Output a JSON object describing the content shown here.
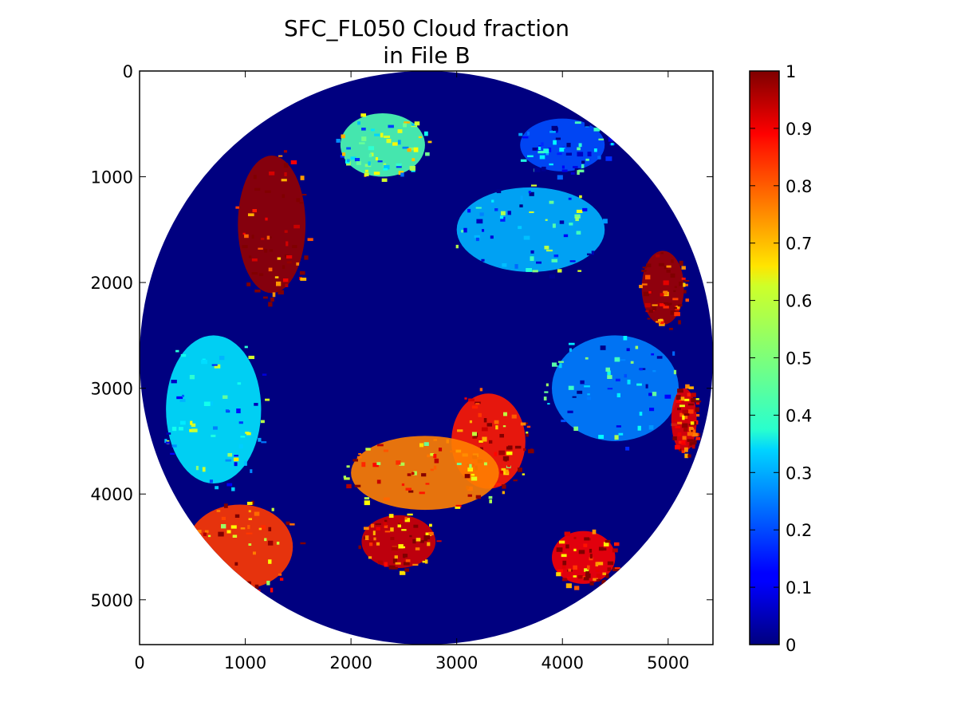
{
  "chart_data": {
    "type": "heatmap",
    "title_line1": "SFC_FL050 Cloud fraction",
    "title_line2": "in File B",
    "xlabel": "",
    "ylabel": "",
    "xlim": [
      0,
      5424
    ],
    "ylim": [
      5424,
      0
    ],
    "x_ticks": [
      0,
      1000,
      2000,
      3000,
      4000,
      5000
    ],
    "y_ticks": [
      0,
      1000,
      2000,
      3000,
      4000,
      5000
    ],
    "x_tick_labels": [
      "0",
      "1000",
      "2000",
      "3000",
      "4000",
      "5000"
    ],
    "y_tick_labels": [
      "0",
      "1000",
      "2000",
      "3000",
      "4000",
      "5000"
    ],
    "colorbar": {
      "min": 0,
      "max": 1,
      "ticks": [
        0,
        0.1,
        0.2,
        0.3,
        0.4,
        0.5,
        0.6,
        0.7,
        0.8,
        0.9,
        1
      ],
      "tick_labels": [
        "0",
        "0.1",
        "0.2",
        "0.3",
        "0.4",
        "0.5",
        "0.6",
        "0.7",
        "0.8",
        "0.9",
        "1"
      ],
      "colormap": "jet"
    },
    "disk": {
      "center": [
        2712,
        2712
      ],
      "radius": 2712,
      "background_value": 0
    },
    "cloud_regions": [
      {
        "cx": 1250,
        "cy": 1450,
        "rx": 320,
        "ry": 650,
        "value": 0.98
      },
      {
        "cx": 4950,
        "cy": 2050,
        "rx": 200,
        "ry": 350,
        "value": 0.97
      },
      {
        "cx": 3300,
        "cy": 3500,
        "rx": 350,
        "ry": 450,
        "value": 0.85
      },
      {
        "cx": 2700,
        "cy": 3800,
        "rx": 700,
        "ry": 350,
        "value": 0.75
      },
      {
        "cx": 950,
        "cy": 4500,
        "rx": 500,
        "ry": 400,
        "value": 0.82
      },
      {
        "cx": 2450,
        "cy": 4450,
        "rx": 350,
        "ry": 250,
        "value": 0.92
      },
      {
        "cx": 4500,
        "cy": 3000,
        "rx": 600,
        "ry": 500,
        "value": 0.25
      },
      {
        "cx": 700,
        "cy": 3200,
        "rx": 450,
        "ry": 700,
        "value": 0.35
      },
      {
        "cx": 2300,
        "cy": 700,
        "rx": 400,
        "ry": 300,
        "value": 0.45
      },
      {
        "cx": 3700,
        "cy": 1500,
        "rx": 700,
        "ry": 400,
        "value": 0.3
      },
      {
        "cx": 4200,
        "cy": 4600,
        "rx": 300,
        "ry": 250,
        "value": 0.88
      },
      {
        "cx": 5150,
        "cy": 3300,
        "rx": 120,
        "ry": 300,
        "value": 0.9
      },
      {
        "cx": 4000,
        "cy": 700,
        "rx": 400,
        "ry": 250,
        "value": 0.2
      }
    ]
  }
}
